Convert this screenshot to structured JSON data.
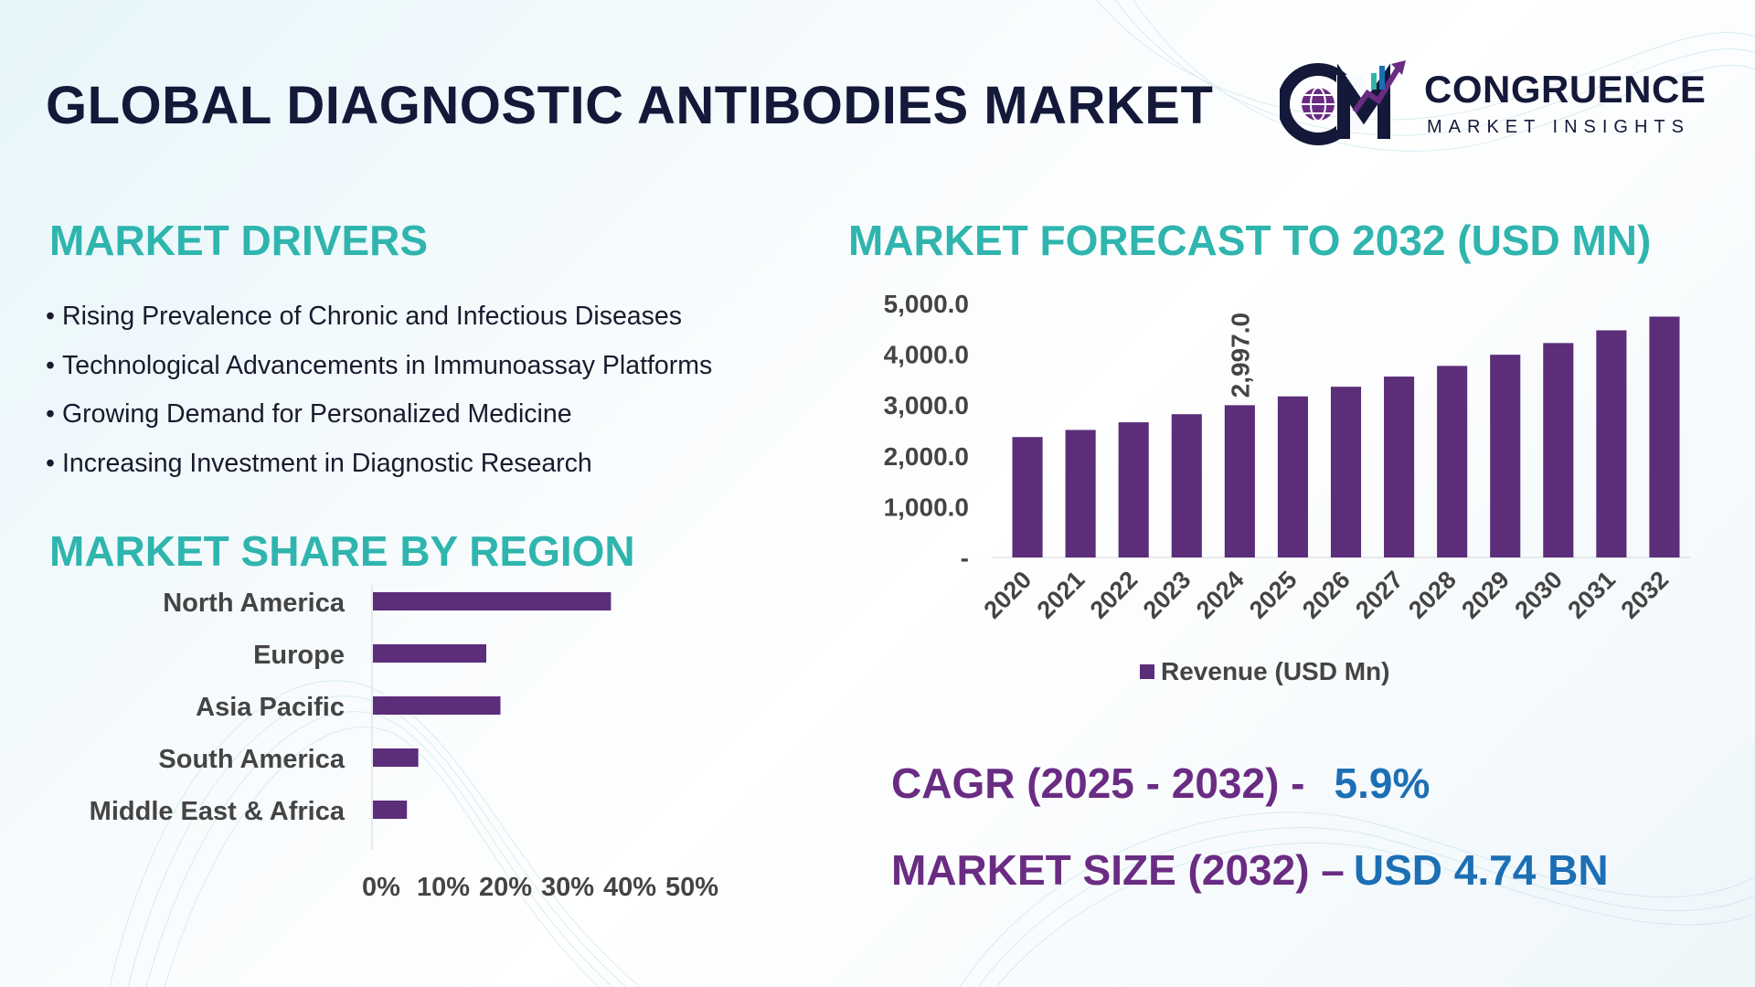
{
  "title": "GLOBAL DIAGNOSTIC ANTIBODIES MARKET",
  "logo": {
    "name": "CONGRUENCE",
    "subtitle": "MARKET INSIGHTS",
    "icon": "cm-globe-chart-logo"
  },
  "drivers": {
    "heading": "MARKET DRIVERS",
    "items": [
      "Rising Prevalence of Chronic and Infectious Diseases",
      "Technological Advancements in Immunoassay Platforms",
      "Growing Demand for Personalized Medicine",
      "Increasing Investment in Diagnostic Research"
    ]
  },
  "forecast": {
    "heading": "MARKET FORECAST TO 2032 (USD MN)"
  },
  "region": {
    "heading": "MARKET SHARE BY REGION"
  },
  "stats": {
    "cagr_label": "CAGR (2025 - 2032) -",
    "cagr_value": "5.9%",
    "size_label": "MARKET SIZE (2032) –",
    "size_value": "USD 4.74 BN"
  },
  "colors": {
    "title": "#14193a",
    "heading": "#2fb5ae",
    "bar": "#5c2d79",
    "stat_label": "#6a2c83",
    "stat_value": "#1c6fb4"
  },
  "chart_data": [
    {
      "type": "bar",
      "categories": [
        "2020",
        "2021",
        "2022",
        "2023",
        "2024",
        "2025",
        "2026",
        "2027",
        "2028",
        "2029",
        "2030",
        "2031",
        "2032"
      ],
      "series": [
        {
          "name": "Revenue (USD Mn)",
          "values": [
            2370,
            2510,
            2660,
            2820,
            2997,
            3170,
            3360,
            3560,
            3770,
            3990,
            4220,
            4470,
            4740
          ]
        }
      ],
      "data_labels": [
        {
          "category": "2024",
          "text": "2,997.0"
        }
      ],
      "yticks": [
        "-",
        "1,000.0",
        "2,000.0",
        "3,000.0",
        "4,000.0",
        "5,000.0"
      ],
      "ylim": [
        0,
        5000
      ],
      "legend": "bottom",
      "grid": false
    },
    {
      "type": "bar",
      "orientation": "horizontal",
      "categories": [
        "North America",
        "Europe",
        "Asia Pacific",
        "South America",
        "Middle East & Africa"
      ],
      "values": [
        42,
        20,
        22.5,
        8,
        6
      ],
      "xticks": [
        "0%",
        "10%",
        "20%",
        "30%",
        "40%",
        "50%"
      ],
      "xlim": [
        0,
        50
      ],
      "grid": false
    }
  ]
}
